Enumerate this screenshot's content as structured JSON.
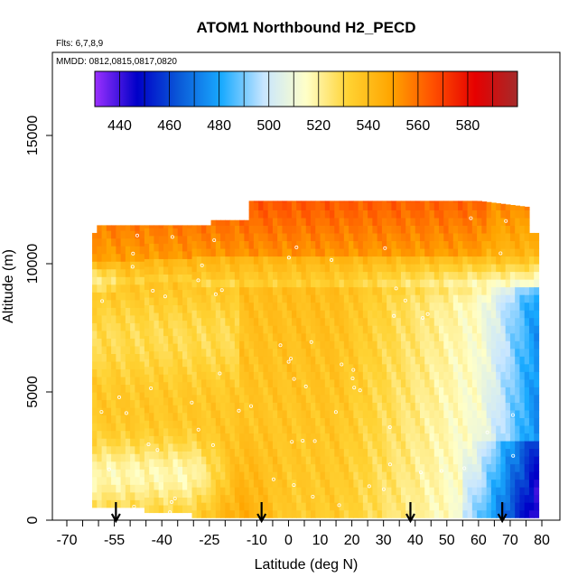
{
  "chart_data": {
    "type": "heatmap",
    "title": "ATOM1 Northbound H2_PECD",
    "notes": [
      "Flts: 6,7,8,9",
      "MMDD: 0812,0815,0817,0820"
    ],
    "xlabel": "Latitude (deg N)",
    "ylabel": "Altitude (m)",
    "xlim": [
      -70,
      85
    ],
    "ylim": [
      0,
      17500
    ],
    "x_ticks": [
      -70,
      -55,
      -40,
      -25,
      -10,
      0,
      10,
      20,
      30,
      40,
      50,
      60,
      70,
      80
    ],
    "x_tick_labels": [
      "-70",
      "-55",
      "-40",
      "-25",
      "-10",
      "0",
      "10",
      "20",
      "30",
      "40",
      "50",
      "60",
      "70",
      "80"
    ],
    "x_minor_step": 5,
    "y_ticks": [
      0,
      5000,
      10000,
      15000
    ],
    "y_tick_labels": [
      "0",
      "5000",
      "10000",
      "15000"
    ],
    "colorbar": {
      "min": 430,
      "max": 600,
      "ticks": [
        440,
        460,
        480,
        500,
        520,
        540,
        560,
        580
      ],
      "tick_labels": [
        "440",
        "460",
        "480",
        "500",
        "520",
        "540",
        "560",
        "580"
      ],
      "colors": [
        "#9b30ff",
        "#0000c8",
        "#0a5ad8",
        "#19aaff",
        "#c8e6ff",
        "#ffffc8",
        "#ffd232",
        "#ffa500",
        "#ff5000",
        "#e60000",
        "#a52a2a"
      ]
    },
    "profile_markers_latitude": [
      -54.5,
      -8.5,
      38.5,
      67.5
    ],
    "colors": {
      "frame": "#000000",
      "background": "#ffffff",
      "marker": "#000000"
    }
  }
}
